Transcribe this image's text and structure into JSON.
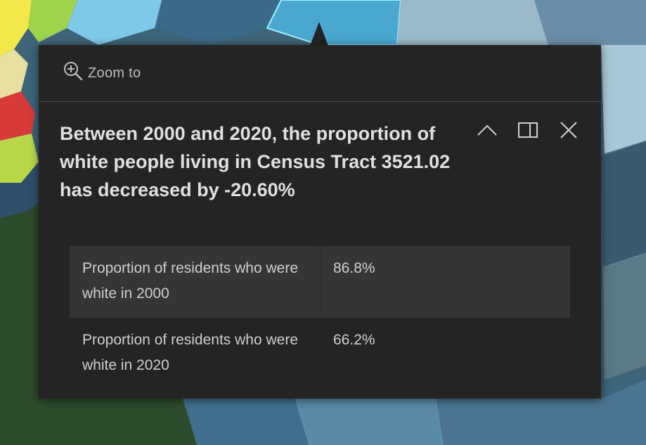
{
  "popup": {
    "zoom_label": "Zoom to",
    "title": "Between 2000 and 2020, the proportion of white people living in Census Tract 3521.02 has decreased by -20.60%",
    "rows": [
      {
        "label": "Proportion of residents who were white in 2000",
        "value": "86.8%"
      },
      {
        "label": "Proportion of residents who were white in 2020",
        "value": "66.2%"
      }
    ]
  },
  "icons": {
    "zoom": "zoom-in-magnifier-icon",
    "collapse": "chevron-up-icon",
    "dock": "dock-panel-icon",
    "close": "close-icon"
  }
}
